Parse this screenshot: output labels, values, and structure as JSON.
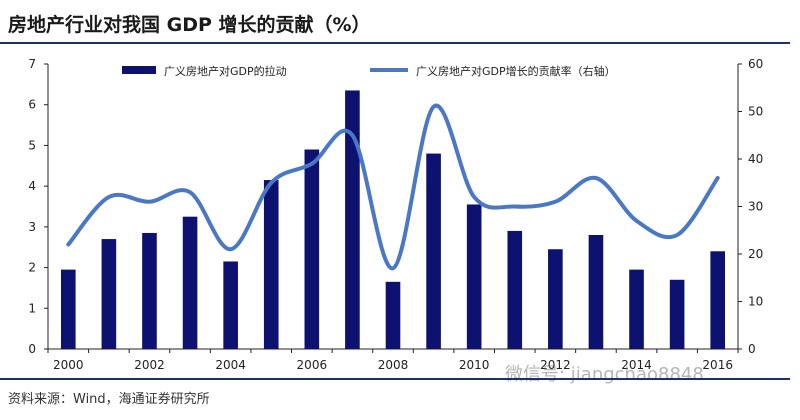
{
  "title": "房地产行业对我国 GDP 增长的贡献（%）",
  "source": "资料来源：Wind，海通证券研究所",
  "watermark": "微信号: jiangchao8848",
  "colors": {
    "bar": "#0d1270",
    "line": "#4a78c6",
    "rule": "#1f2f6b"
  },
  "chart_data": {
    "type": "bar",
    "categories": [
      "2000",
      "2001",
      "2002",
      "2003",
      "2004",
      "2005",
      "2006",
      "2007",
      "2008",
      "2009",
      "2010",
      "2011",
      "2012",
      "2013",
      "2014",
      "2015",
      "2016"
    ],
    "x_tick_labels": [
      "2000",
      "2002",
      "2004",
      "2006",
      "2008",
      "2010",
      "2012",
      "2014",
      "2016"
    ],
    "left_ticks": [
      "0",
      "1",
      "2",
      "3",
      "4",
      "5",
      "6",
      "7"
    ],
    "right_ticks": [
      "0",
      "10",
      "20",
      "30",
      "40",
      "50",
      "60"
    ],
    "ylim": [
      0,
      7
    ],
    "y2lim": [
      0,
      60
    ],
    "grid": false,
    "legend_position": "top",
    "series": [
      {
        "name": "广义房地产对GDP的拉动",
        "kind": "bar",
        "axis": "left",
        "values": [
          1.95,
          2.7,
          2.85,
          3.25,
          2.15,
          4.15,
          4.9,
          6.35,
          1.65,
          4.8,
          3.55,
          2.9,
          2.45,
          2.8,
          1.95,
          1.7,
          2.4
        ]
      },
      {
        "name": "广义房地产对GDP增长的贡献率（右轴）",
        "kind": "line",
        "axis": "right",
        "values": [
          22,
          32,
          31,
          33,
          21,
          35,
          39,
          45,
          17,
          51,
          32,
          30,
          31,
          36,
          27,
          24,
          36
        ]
      }
    ]
  }
}
